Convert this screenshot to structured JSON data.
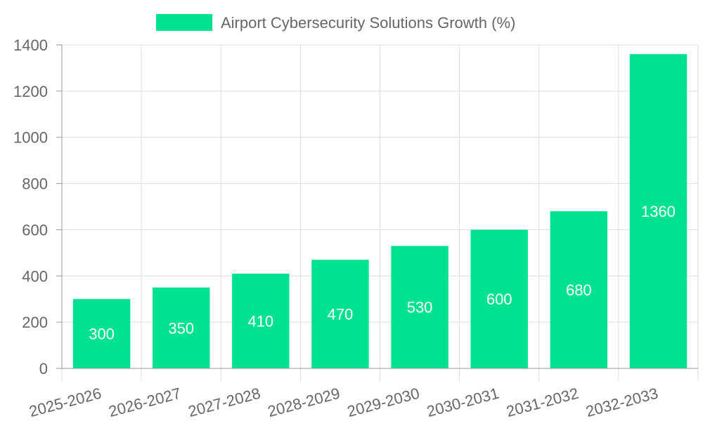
{
  "chart_data": {
    "type": "bar",
    "categories": [
      "2025-2026",
      "2026-2027",
      "2027-2028",
      "2028-2029",
      "2029-2030",
      "2030-2031",
      "2031-2032",
      "2032-2033"
    ],
    "series": [
      {
        "name": "Airport Cybersecurity Solutions Growth (%)",
        "values": [
          300,
          350,
          410,
          470,
          530,
          600,
          680,
          1360
        ],
        "color": "#00e290"
      }
    ],
    "yticks": [
      "0",
      "200",
      "400",
      "600",
      "800",
      "1000",
      "1200",
      "1400"
    ],
    "ylim": [
      0,
      1400
    ],
    "grid": true,
    "legend_position": "top-center",
    "data_labels": true
  }
}
